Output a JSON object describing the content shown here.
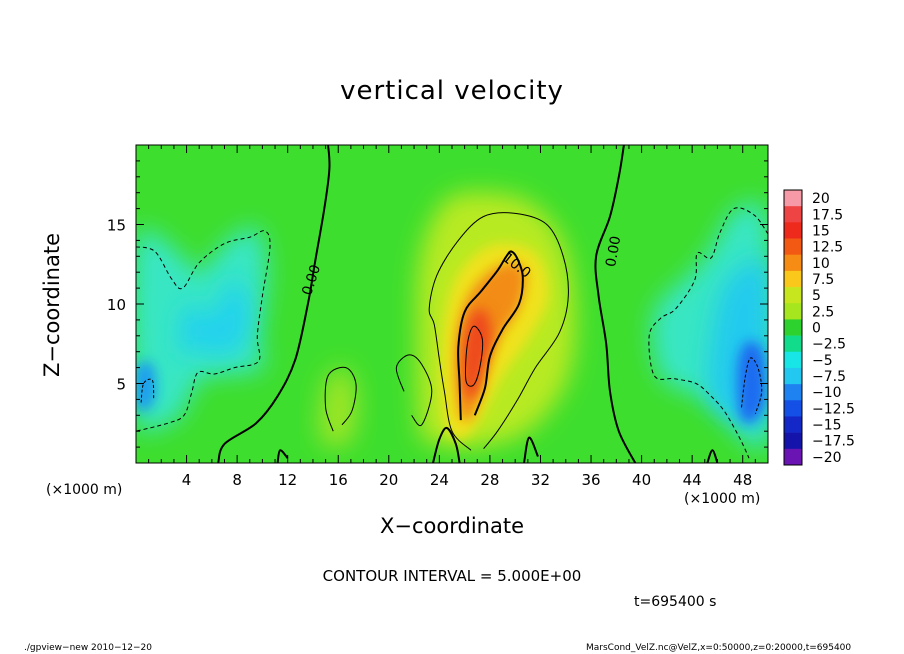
{
  "chart_data": {
    "type": "heatmap",
    "title": "vertical velocity",
    "xlabel": "X−coordinate",
    "ylabel": "Z−coordinate",
    "x_units": "(×1000 m)",
    "y_units": "(×1000 m)",
    "xlim": [
      0,
      50
    ],
    "ylim": [
      0,
      20
    ],
    "x_ticks": [
      4,
      8,
      12,
      16,
      20,
      24,
      28,
      32,
      36,
      40,
      44,
      48
    ],
    "x_tick_labels": [
      "4",
      "8",
      "12",
      "16",
      "20",
      "24",
      "28",
      "32",
      "36",
      "40",
      "44",
      "48"
    ],
    "y_ticks": [
      5,
      10,
      15
    ],
    "y_tick_labels": [
      "5",
      "10",
      "15"
    ],
    "colorbar": {
      "levels": [
        20,
        17.5,
        15,
        12.5,
        10,
        7.5,
        5,
        2.5,
        0,
        -2.5,
        -5,
        -7.5,
        -10,
        -12.5,
        -15,
        -17.5,
        -20
      ],
      "labels": [
        "20",
        "17.5",
        "15",
        "12.5",
        "10",
        "7.5",
        "5",
        "2.5",
        "0",
        "−2.5",
        "−5",
        "−7.5",
        "−10",
        "−12.5",
        "−15",
        "−17.5",
        "−20"
      ],
      "colors": [
        "#f59aa6",
        "#ee4444",
        "#ee2a1c",
        "#f25a14",
        "#f68c14",
        "#f9c81a",
        "#c8e61e",
        "#a6e61e",
        "#2ed22e",
        "#10dc8c",
        "#18e6e6",
        "#22c8f0",
        "#1e82f0",
        "#1450e6",
        "#1428c8",
        "#1414aa",
        "#6a14b4"
      ]
    },
    "contour_labels": [
      {
        "text": "0.00",
        "x": 13.9,
        "y": 11.5
      },
      {
        "text": "10.0",
        "x": 30.1,
        "y": 12.4
      },
      {
        "text": "0.00",
        "x": 37.8,
        "y": 13.3
      }
    ],
    "contour_interval_text": "CONTOUR INTERVAL = 5.000E+00",
    "time_text": "t=695400 s",
    "features": [
      {
        "kind": "updraft",
        "x": 26.8,
        "y": 7.0,
        "value": 17.5
      },
      {
        "kind": "downdraft",
        "x": 48.6,
        "y": 5.2,
        "value": -10
      },
      {
        "kind": "downdraft",
        "x": 1.8,
        "y": 5.0,
        "value": -7.5
      },
      {
        "kind": "downdraft",
        "x": 7.0,
        "y": 9.5,
        "value": -5
      }
    ]
  },
  "footer": {
    "left": "./gpview−new   2010−12−20",
    "right": "MarsCond_VelZ.nc@VelZ,x=0:50000,z=0:20000,t=695400"
  }
}
